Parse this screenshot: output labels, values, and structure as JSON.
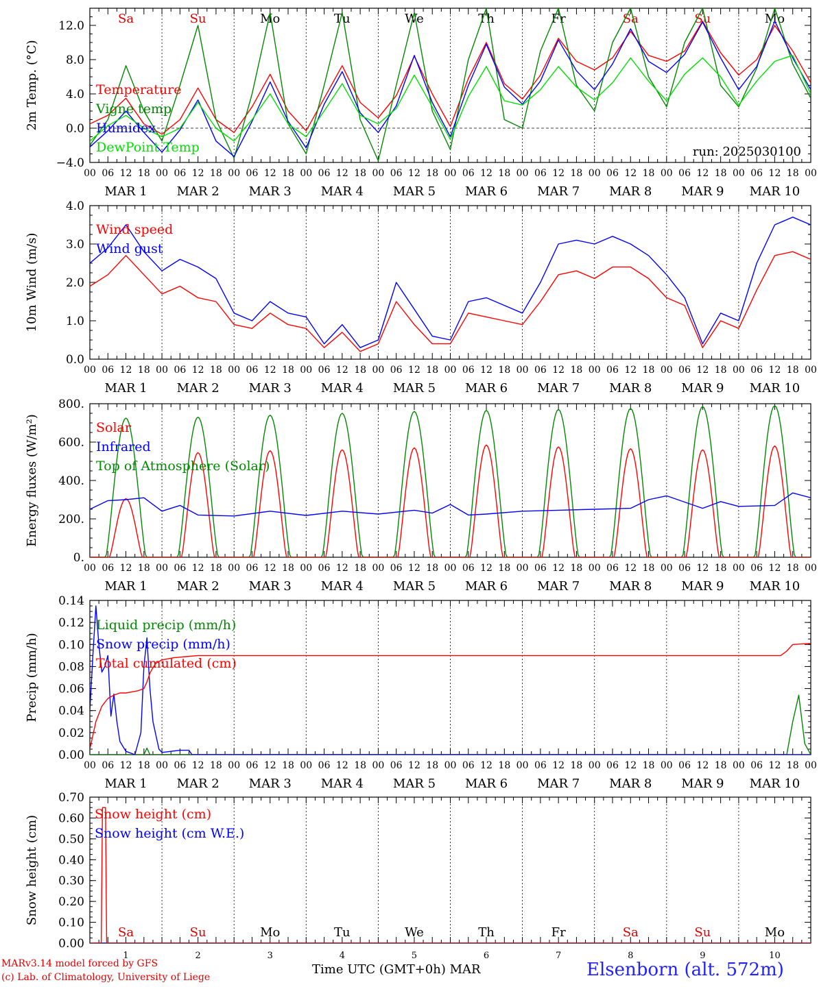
{
  "run_label": "run: 2025030100",
  "days": {
    "names": [
      "Sa",
      "Su",
      "Mo",
      "Tu",
      "We",
      "Th",
      "Fr",
      "Sa",
      "Su",
      "Mo"
    ],
    "name_colors": [
      "#e00000",
      "#e00000",
      "#000000",
      "#000000",
      "#000000",
      "#000000",
      "#000000",
      "#e00000",
      "#e00000",
      "#000000"
    ],
    "month_labels": [
      "MAR  1",
      "MAR  2",
      "MAR  3",
      "MAR  4",
      "MAR  5",
      "MAR  6",
      "MAR  7",
      "MAR  8",
      "MAR  9",
      "MAR 10"
    ],
    "numbers": [
      "1",
      "2",
      "3",
      "4",
      "5",
      "6",
      "7",
      "8",
      "9",
      "10"
    ],
    "hour_ticks": [
      "00",
      "06",
      "12",
      "18"
    ],
    "final_tick": "00"
  },
  "footer": {
    "credit_line1": "MARv3.14 model forced by GFS",
    "credit_line2": "(c) Lab. of Climatology, University of Liege",
    "x_axis_label": "Time UTC (GMT+0h) MAR",
    "station": "Elsenborn (alt. 572m)"
  },
  "colors": {
    "red": "#ff0000",
    "green": "#008800",
    "blue": "#0000ff",
    "lightgreen": "#00e000"
  },
  "chart_data": [
    {
      "type": "line",
      "ylabel": "2m Temp. (°C)",
      "ylim": [
        -4,
        14
      ],
      "yticks": [
        -4,
        0,
        4,
        8,
        12
      ],
      "ytick_labels": [
        "−4.0",
        "0.0",
        "4.0",
        "8.0",
        "12.0"
      ],
      "zero_line": true,
      "x_hours": [
        0,
        6,
        12,
        18,
        24,
        30,
        36,
        42,
        48,
        54,
        60,
        66,
        72,
        78,
        84,
        90,
        96,
        102,
        108,
        114,
        120,
        126,
        132,
        138,
        144,
        150,
        156,
        162,
        168,
        174,
        180,
        186,
        192,
        198,
        204,
        210,
        216,
        222,
        228,
        234,
        240
      ],
      "series": [
        {
          "name": "Temperature",
          "color": "red",
          "values": [
            0.5,
            1.5,
            3.5,
            0.5,
            -0.7,
            1.0,
            4.7,
            1.0,
            -0.5,
            2.5,
            6.3,
            2.0,
            -0.3,
            3.5,
            7.3,
            3.0,
            1.2,
            3.8,
            8.4,
            4.0,
            0.2,
            5.8,
            10.0,
            5.2,
            3.4,
            6.2,
            10.5,
            7.8,
            6.8,
            8.2,
            11.3,
            8.5,
            7.8,
            9.0,
            12.5,
            8.8,
            6.2,
            8.0,
            12.0,
            9.0,
            5.3
          ]
        },
        {
          "name": "Vigne temp",
          "color": "green",
          "values": [
            -2.0,
            1.0,
            7.3,
            2.0,
            -1.5,
            5.0,
            12.0,
            1.0,
            -3.5,
            4.0,
            13.5,
            0.5,
            -3.0,
            5.0,
            13.5,
            1.0,
            -3.8,
            5.0,
            13.5,
            2.0,
            -2.5,
            8.0,
            14.0,
            1.0,
            0.0,
            9.0,
            14.0,
            5.0,
            2.0,
            10.0,
            14.0,
            6.0,
            2.5,
            10.0,
            14.0,
            5.0,
            2.5,
            7.0,
            14.0,
            7.5,
            3.5
          ]
        },
        {
          "name": "Humidex",
          "color": "blue",
          "values": [
            -2.2,
            -0.3,
            2.0,
            -0.5,
            -2.8,
            -0.2,
            3.3,
            -1.5,
            -3.3,
            0.8,
            5.4,
            0.8,
            -2.3,
            2.8,
            6.6,
            1.8,
            -0.5,
            2.6,
            8.5,
            3.0,
            -1.0,
            5.0,
            9.8,
            4.8,
            2.8,
            5.5,
            10.3,
            6.7,
            4.5,
            7.5,
            11.6,
            7.8,
            6.5,
            8.6,
            12.4,
            8.2,
            4.5,
            7.2,
            12.5,
            8.2,
            4.5
          ]
        },
        {
          "name": "DewPoint Temp",
          "color": "lightgreen",
          "values": [
            -1.5,
            0.3,
            1.5,
            0.0,
            -1.0,
            0.0,
            3.0,
            0.0,
            -1.5,
            1.0,
            4.0,
            0.5,
            -1.0,
            2.0,
            5.2,
            1.5,
            0.5,
            2.3,
            6.2,
            2.5,
            -1.3,
            3.7,
            7.2,
            3.2,
            2.7,
            4.5,
            7.2,
            4.8,
            3.3,
            5.3,
            8.2,
            5.5,
            3.2,
            6.3,
            8.2,
            6.0,
            2.7,
            5.5,
            7.8,
            8.5,
            4.0
          ]
        }
      ]
    },
    {
      "type": "line",
      "ylabel": "10m Wind (m/s)",
      "ylim": [
        0,
        4
      ],
      "yticks": [
        0,
        1,
        2,
        3,
        4
      ],
      "ytick_labels": [
        "0.0",
        "1.0",
        "2.0",
        "3.0",
        "4.0"
      ],
      "x_hours": [
        0,
        6,
        12,
        18,
        24,
        30,
        36,
        42,
        48,
        54,
        60,
        66,
        72,
        78,
        84,
        90,
        96,
        102,
        108,
        114,
        120,
        126,
        132,
        138,
        144,
        150,
        156,
        162,
        168,
        174,
        180,
        186,
        192,
        198,
        204,
        210,
        216,
        222,
        228,
        234,
        240
      ],
      "series": [
        {
          "name": "Wind speed",
          "color": "red",
          "values": [
            1.9,
            2.2,
            2.7,
            2.2,
            1.7,
            1.9,
            1.6,
            1.5,
            0.9,
            0.8,
            1.2,
            0.9,
            0.8,
            0.3,
            0.7,
            0.2,
            0.4,
            1.5,
            0.9,
            0.4,
            0.4,
            1.2,
            1.1,
            1.0,
            0.9,
            1.5,
            2.2,
            2.3,
            2.1,
            2.4,
            2.4,
            2.1,
            1.6,
            1.4,
            0.3,
            1.0,
            0.8,
            1.8,
            2.7,
            2.8,
            2.6
          ]
        },
        {
          "name": "Wind gust",
          "color": "blue",
          "values": [
            2.5,
            2.9,
            3.5,
            2.8,
            2.3,
            2.6,
            2.4,
            2.1,
            1.2,
            1.0,
            1.5,
            1.2,
            1.1,
            0.4,
            0.9,
            0.3,
            0.5,
            2.0,
            1.3,
            0.6,
            0.5,
            1.5,
            1.6,
            1.4,
            1.2,
            2.0,
            3.0,
            3.1,
            3.0,
            3.2,
            3.0,
            2.7,
            2.2,
            1.6,
            0.4,
            1.2,
            1.0,
            2.5,
            3.5,
            3.7,
            3.5
          ]
        }
      ]
    },
    {
      "type": "line",
      "ylabel": "Energy fluxes (W/m²)",
      "ylim": [
        0,
        800
      ],
      "yticks": [
        0,
        200,
        400,
        600,
        800
      ],
      "ytick_labels": [
        "0.",
        "200.",
        "400.",
        "600.",
        "800."
      ],
      "peak_hour": 12,
      "day_half_width_hours": 6.7,
      "solar_peaks": [
        305,
        545,
        555,
        560,
        570,
        585,
        575,
        565,
        560,
        580
      ],
      "toa_peaks": [
        725,
        730,
        740,
        750,
        760,
        765,
        770,
        775,
        785,
        790
      ],
      "solar_name": "Solar",
      "solar_color": "red",
      "toa_name": "Top of Atmosphere (Solar)",
      "toa_color": "green",
      "series": [
        {
          "name": "Infrared",
          "color": "blue",
          "x_hours": [
            0,
            6,
            12,
            18,
            24,
            30,
            36,
            48,
            60,
            72,
            84,
            96,
            108,
            114,
            120,
            126,
            132,
            144,
            156,
            168,
            180,
            186,
            192,
            204,
            210,
            216,
            228,
            234,
            240
          ],
          "values": [
            250,
            295,
            300,
            310,
            240,
            270,
            220,
            215,
            240,
            218,
            240,
            225,
            245,
            230,
            275,
            220,
            225,
            240,
            245,
            250,
            255,
            300,
            320,
            255,
            290,
            265,
            270,
            335,
            310
          ]
        }
      ]
    },
    {
      "type": "line",
      "ylabel": "Precip (mm/h)",
      "ylim": [
        0,
        0.14
      ],
      "yticks": [
        0,
        0.02,
        0.04,
        0.06,
        0.08,
        0.1,
        0.12,
        0.14
      ],
      "ytick_labels": [
        "0.00",
        "0.02",
        "0.04",
        "0.06",
        "0.08",
        "0.10",
        "0.12",
        "0.14"
      ],
      "series": [
        {
          "name": "Liquid precip (mm/h)",
          "color": "green",
          "x_hours": [
            0,
            18,
            19,
            20,
            22,
            232,
            234,
            236,
            238,
            240
          ],
          "values": [
            0,
            0,
            0.006,
            0,
            0,
            0,
            0.03,
            0.054,
            0.01,
            0
          ]
        },
        {
          "name": "Snow precip (mm/h)",
          "color": "blue",
          "x_hours": [
            0,
            1,
            2,
            3,
            4,
            5,
            6,
            7,
            8,
            9,
            10,
            12,
            15,
            17,
            18,
            19,
            20,
            21,
            23,
            24,
            27,
            30,
            33,
            34,
            240
          ],
          "values": [
            0.04,
            0.09,
            0.135,
            0.1,
            0.075,
            0.08,
            0.09,
            0.035,
            0.055,
            0.03,
            0.012,
            0.003,
            0,
            0.02,
            0.08,
            0.106,
            0.06,
            0.03,
            0.005,
            0.002,
            0.003,
            0.004,
            0.004,
            0,
            0
          ]
        },
        {
          "name": "Total cumulated (cm)",
          "color": "red",
          "x_hours": [
            0,
            2,
            4,
            6,
            8,
            10,
            12,
            14,
            16,
            18,
            19,
            20,
            21,
            22,
            24,
            28,
            32,
            36,
            44,
            48,
            60,
            230,
            232,
            234,
            240
          ],
          "values": [
            0.005,
            0.03,
            0.044,
            0.051,
            0.054,
            0.056,
            0.056,
            0.057,
            0.058,
            0.06,
            0.066,
            0.074,
            0.079,
            0.083,
            0.086,
            0.088,
            0.089,
            0.09,
            0.09,
            0.09,
            0.09,
            0.09,
            0.094,
            0.1,
            0.101
          ]
        }
      ]
    },
    {
      "type": "line",
      "ylabel": "Snow height (cm)",
      "ylim": [
        0,
        0.7
      ],
      "yticks": [
        0,
        0.1,
        0.2,
        0.3,
        0.4,
        0.5,
        0.6,
        0.7
      ],
      "ytick_labels": [
        "0.00",
        "0.10",
        "0.20",
        "0.30",
        "0.40",
        "0.50",
        "0.60",
        "0.70"
      ],
      "series": [
        {
          "name": "Snow height (cm)",
          "color": "red",
          "x_hours": [
            0,
            3.8,
            4.2,
            4.6,
            5.2,
            5.6,
            240
          ],
          "values": [
            0,
            0,
            0.65,
            0.65,
            0.65,
            0,
            0
          ]
        },
        {
          "name": "Snow height (cm W.E.)",
          "color": "blue",
          "x_hours": [
            0,
            240
          ],
          "values": [
            0,
            0
          ]
        }
      ]
    }
  ]
}
